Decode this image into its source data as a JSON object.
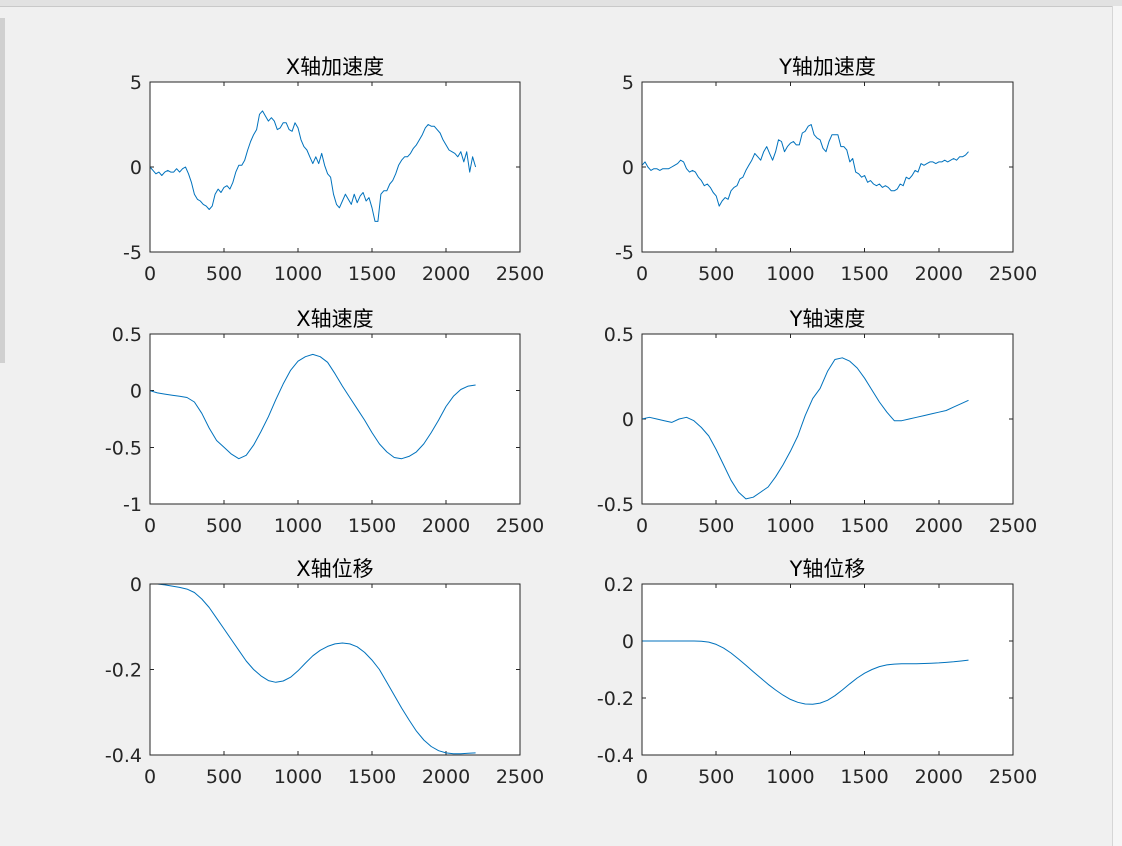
{
  "chart_data": [
    {
      "type": "line",
      "title": "X轴加速度",
      "xlim": [
        0,
        2500
      ],
      "ylim": [
        -5,
        5
      ],
      "xticks": [
        "0",
        "500",
        "1000",
        "1500",
        "2000",
        "2500"
      ],
      "yticks": [
        "5",
        "0",
        "-5"
      ],
      "color": "#0072bd",
      "series": [
        {
          "x": [
            0,
            20,
            40,
            60,
            80,
            100,
            120,
            140,
            160,
            180,
            200,
            220,
            240,
            260,
            280,
            300,
            320,
            340,
            360,
            380,
            400,
            420,
            440,
            460,
            480,
            500,
            520,
            540,
            560,
            580,
            600,
            620,
            640,
            660,
            680,
            700,
            720,
            740,
            760,
            780,
            800,
            820,
            840,
            860,
            880,
            900,
            920,
            940,
            960,
            980,
            1000,
            1020,
            1040,
            1060,
            1080,
            1100,
            1120,
            1140,
            1160,
            1180,
            1200,
            1220,
            1240,
            1260,
            1280,
            1300,
            1320,
            1340,
            1360,
            1380,
            1400,
            1420,
            1440,
            1460,
            1480,
            1500,
            1520,
            1540,
            1560,
            1580,
            1600,
            1620,
            1640,
            1660,
            1680,
            1700,
            1720,
            1740,
            1760,
            1780,
            1800,
            1820,
            1840,
            1860,
            1880,
            1900,
            1920,
            1940,
            1960,
            1980,
            2000,
            2020,
            2040,
            2060,
            2080,
            2100,
            2120,
            2140,
            2160,
            2180,
            2200
          ],
          "y": [
            0.0,
            -0.2,
            -0.4,
            -0.3,
            -0.5,
            -0.3,
            -0.2,
            -0.3,
            -0.3,
            -0.1,
            -0.3,
            -0.1,
            0.0,
            -0.4,
            -0.9,
            -1.6,
            -1.9,
            -2.0,
            -2.2,
            -2.3,
            -2.5,
            -2.3,
            -1.6,
            -1.3,
            -1.5,
            -1.2,
            -1.1,
            -1.3,
            -0.9,
            -0.3,
            0.1,
            0.1,
            0.4,
            1.0,
            1.5,
            1.9,
            2.2,
            3.1,
            3.3,
            3.0,
            2.7,
            2.9,
            2.7,
            2.2,
            2.3,
            2.6,
            2.6,
            2.2,
            2.1,
            2.6,
            2.3,
            1.6,
            1.2,
            1.0,
            0.6,
            0.2,
            0.6,
            0.2,
            0.8,
            0.1,
            -0.4,
            -0.6,
            -1.6,
            -2.2,
            -2.4,
            -2.0,
            -1.6,
            -1.9,
            -2.2,
            -1.6,
            -2.1,
            -1.7,
            -1.5,
            -2.0,
            -1.8,
            -2.4,
            -3.2,
            -3.2,
            -1.6,
            -1.4,
            -1.4,
            -1.0,
            -0.8,
            -0.4,
            0.1,
            0.4,
            0.6,
            0.6,
            0.8,
            1.1,
            1.3,
            1.6,
            1.9,
            2.3,
            2.5,
            2.4,
            2.4,
            2.2,
            2.0,
            1.6,
            1.3,
            1.0,
            0.9,
            0.8,
            0.6,
            0.9,
            0.3,
            0.9,
            -0.3,
            0.6,
            0.0
          ]
        }
      ]
    },
    {
      "type": "line",
      "title": "Y轴加速度",
      "xlim": [
        0,
        2500
      ],
      "ylim": [
        -5,
        5
      ],
      "xticks": [
        "0",
        "500",
        "1000",
        "1500",
        "2000",
        "2500"
      ],
      "yticks": [
        "5",
        "0",
        "-5"
      ],
      "color": "#0072bd",
      "series": [
        {
          "x": [
            0,
            20,
            40,
            60,
            80,
            100,
            120,
            140,
            160,
            180,
            200,
            220,
            240,
            260,
            280,
            300,
            320,
            340,
            360,
            380,
            400,
            420,
            440,
            460,
            480,
            500,
            520,
            540,
            560,
            580,
            600,
            620,
            640,
            660,
            680,
            700,
            720,
            740,
            760,
            780,
            800,
            820,
            840,
            860,
            880,
            900,
            920,
            940,
            960,
            980,
            1000,
            1020,
            1040,
            1060,
            1080,
            1100,
            1120,
            1140,
            1160,
            1180,
            1200,
            1220,
            1240,
            1260,
            1280,
            1300,
            1320,
            1340,
            1360,
            1380,
            1400,
            1420,
            1440,
            1460,
            1480,
            1500,
            1520,
            1540,
            1560,
            1580,
            1600,
            1620,
            1640,
            1660,
            1680,
            1700,
            1720,
            1740,
            1760,
            1780,
            1800,
            1820,
            1840,
            1860,
            1880,
            1900,
            1920,
            1940,
            1960,
            1980,
            2000,
            2020,
            2040,
            2060,
            2080,
            2100,
            2120,
            2140,
            2160,
            2180,
            2200
          ],
          "y": [
            0.1,
            0.3,
            0.0,
            -0.2,
            -0.1,
            -0.1,
            -0.2,
            -0.1,
            -0.1,
            -0.1,
            0.0,
            0.1,
            0.2,
            0.4,
            0.3,
            -0.1,
            -0.3,
            -0.2,
            -0.3,
            -0.6,
            -0.8,
            -1.1,
            -1.0,
            -1.2,
            -1.5,
            -1.7,
            -2.3,
            -2.0,
            -1.8,
            -1.9,
            -1.4,
            -1.2,
            -1.1,
            -0.7,
            -0.6,
            -0.2,
            0.1,
            0.4,
            0.8,
            0.6,
            0.4,
            0.9,
            1.2,
            0.8,
            0.4,
            0.9,
            1.6,
            1.5,
            0.9,
            1.2,
            1.4,
            1.5,
            1.3,
            1.3,
            2.0,
            2.1,
            2.4,
            2.5,
            1.9,
            1.7,
            1.6,
            1.1,
            0.9,
            1.5,
            1.9,
            1.9,
            1.9,
            1.2,
            1.2,
            1.0,
            0.3,
            0.5,
            -0.3,
            -0.4,
            -0.6,
            -0.5,
            -0.9,
            -0.8,
            -1.0,
            -1.1,
            -1.0,
            -1.2,
            -1.1,
            -1.2,
            -1.4,
            -1.4,
            -1.3,
            -1.0,
            -1.1,
            -0.6,
            -0.7,
            -0.5,
            -0.2,
            -0.3,
            0.2,
            0.1,
            0.2,
            0.3,
            0.3,
            0.2,
            0.3,
            0.3,
            0.4,
            0.3,
            0.4,
            0.5,
            0.4,
            0.6,
            0.6,
            0.7,
            0.9
          ]
        }
      ]
    },
    {
      "type": "line",
      "title": "X轴速度",
      "xlim": [
        0,
        2500
      ],
      "ylim": [
        -1,
        0.5
      ],
      "xticks": [
        "0",
        "500",
        "1000",
        "1500",
        "2000",
        "2500"
      ],
      "yticks": [
        "0.5",
        "0",
        "-0.5",
        "-1"
      ],
      "color": "#0072bd",
      "series": [
        {
          "x": [
            0,
            50,
            100,
            150,
            200,
            250,
            300,
            350,
            400,
            450,
            500,
            550,
            600,
            650,
            700,
            750,
            800,
            850,
            900,
            950,
            1000,
            1050,
            1100,
            1150,
            1200,
            1250,
            1300,
            1350,
            1400,
            1450,
            1500,
            1550,
            1600,
            1650,
            1700,
            1750,
            1800,
            1850,
            1900,
            1950,
            2000,
            2050,
            2100,
            2150,
            2200
          ],
          "y": [
            0.0,
            -0.02,
            -0.03,
            -0.04,
            -0.05,
            -0.06,
            -0.1,
            -0.2,
            -0.33,
            -0.44,
            -0.5,
            -0.56,
            -0.6,
            -0.57,
            -0.48,
            -0.36,
            -0.23,
            -0.08,
            0.06,
            0.18,
            0.26,
            0.3,
            0.32,
            0.3,
            0.25,
            0.15,
            0.04,
            -0.06,
            -0.16,
            -0.26,
            -0.37,
            -0.47,
            -0.54,
            -0.59,
            -0.6,
            -0.58,
            -0.54,
            -0.47,
            -0.37,
            -0.26,
            -0.14,
            -0.05,
            0.01,
            0.04,
            0.05
          ]
        }
      ]
    },
    {
      "type": "line",
      "title": "Y轴速度",
      "xlim": [
        0,
        2500
      ],
      "ylim": [
        -0.5,
        0.5
      ],
      "xticks": [
        "0",
        "500",
        "1000",
        "1500",
        "2000",
        "2500"
      ],
      "yticks": [
        "0.5",
        "0",
        "-0.5"
      ],
      "color": "#0072bd",
      "series": [
        {
          "x": [
            0,
            50,
            100,
            150,
            200,
            250,
            300,
            350,
            400,
            450,
            500,
            550,
            600,
            650,
            700,
            750,
            800,
            850,
            900,
            950,
            1000,
            1050,
            1100,
            1150,
            1200,
            1250,
            1300,
            1350,
            1400,
            1450,
            1500,
            1550,
            1600,
            1650,
            1700,
            1750,
            1800,
            1850,
            1900,
            1950,
            2000,
            2050,
            2100,
            2150,
            2200
          ],
          "y": [
            0.0,
            0.01,
            0.0,
            -0.01,
            -0.02,
            0.0,
            0.01,
            -0.01,
            -0.05,
            -0.1,
            -0.18,
            -0.27,
            -0.36,
            -0.43,
            -0.47,
            -0.46,
            -0.43,
            -0.4,
            -0.34,
            -0.27,
            -0.19,
            -0.1,
            0.02,
            0.12,
            0.18,
            0.28,
            0.35,
            0.36,
            0.34,
            0.3,
            0.24,
            0.17,
            0.1,
            0.04,
            -0.01,
            -0.01,
            0.0,
            0.01,
            0.02,
            0.03,
            0.04,
            0.05,
            0.07,
            0.09,
            0.11
          ]
        }
      ]
    },
    {
      "type": "line",
      "title": "X轴位移",
      "xlim": [
        0,
        2500
      ],
      "ylim": [
        -0.4,
        0
      ],
      "xticks": [
        "0",
        "500",
        "1000",
        "1500",
        "2000",
        "2500"
      ],
      "yticks": [
        "0",
        "-0.2",
        "-0.4"
      ],
      "color": "#0072bd",
      "series": [
        {
          "x": [
            0,
            50,
            100,
            150,
            200,
            250,
            300,
            350,
            400,
            450,
            500,
            550,
            600,
            650,
            700,
            750,
            800,
            850,
            900,
            950,
            1000,
            1050,
            1100,
            1150,
            1200,
            1250,
            1300,
            1350,
            1400,
            1450,
            1500,
            1550,
            1600,
            1650,
            1700,
            1750,
            1800,
            1850,
            1900,
            1950,
            2000,
            2050,
            2100,
            2150,
            2200
          ],
          "y": [
            0.0,
            0.0,
            -0.002,
            -0.005,
            -0.008,
            -0.012,
            -0.02,
            -0.035,
            -0.055,
            -0.08,
            -0.105,
            -0.13,
            -0.155,
            -0.18,
            -0.2,
            -0.215,
            -0.226,
            -0.23,
            -0.227,
            -0.218,
            -0.203,
            -0.185,
            -0.168,
            -0.155,
            -0.146,
            -0.14,
            -0.138,
            -0.14,
            -0.147,
            -0.16,
            -0.178,
            -0.2,
            -0.23,
            -0.26,
            -0.29,
            -0.318,
            -0.344,
            -0.365,
            -0.38,
            -0.39,
            -0.395,
            -0.397,
            -0.397,
            -0.396,
            -0.395
          ]
        }
      ]
    },
    {
      "type": "line",
      "title": "Y轴位移",
      "xlim": [
        0,
        2500
      ],
      "ylim": [
        -0.4,
        0.2
      ],
      "xticks": [
        "0",
        "500",
        "1000",
        "1500",
        "2000",
        "2500"
      ],
      "yticks": [
        "0.2",
        "0",
        "-0.2",
        "-0.4"
      ],
      "color": "#0072bd",
      "series": [
        {
          "x": [
            0,
            50,
            100,
            150,
            200,
            250,
            300,
            350,
            400,
            450,
            500,
            550,
            600,
            650,
            700,
            750,
            800,
            850,
            900,
            950,
            1000,
            1050,
            1100,
            1150,
            1200,
            1250,
            1300,
            1350,
            1400,
            1450,
            1500,
            1550,
            1600,
            1650,
            1700,
            1750,
            1800,
            1850,
            1900,
            1950,
            2000,
            2050,
            2100,
            2150,
            2200
          ],
          "y": [
            0.0,
            0.0,
            0.0,
            0.0,
            0.0,
            0.0,
            0.0,
            0.0,
            -0.001,
            -0.004,
            -0.012,
            -0.025,
            -0.042,
            -0.063,
            -0.085,
            -0.108,
            -0.13,
            -0.152,
            -0.172,
            -0.19,
            -0.205,
            -0.215,
            -0.221,
            -0.222,
            -0.218,
            -0.208,
            -0.192,
            -0.172,
            -0.15,
            -0.13,
            -0.113,
            -0.1,
            -0.09,
            -0.084,
            -0.081,
            -0.08,
            -0.08,
            -0.08,
            -0.079,
            -0.078,
            -0.077,
            -0.075,
            -0.073,
            -0.07,
            -0.067
          ]
        }
      ]
    }
  ]
}
